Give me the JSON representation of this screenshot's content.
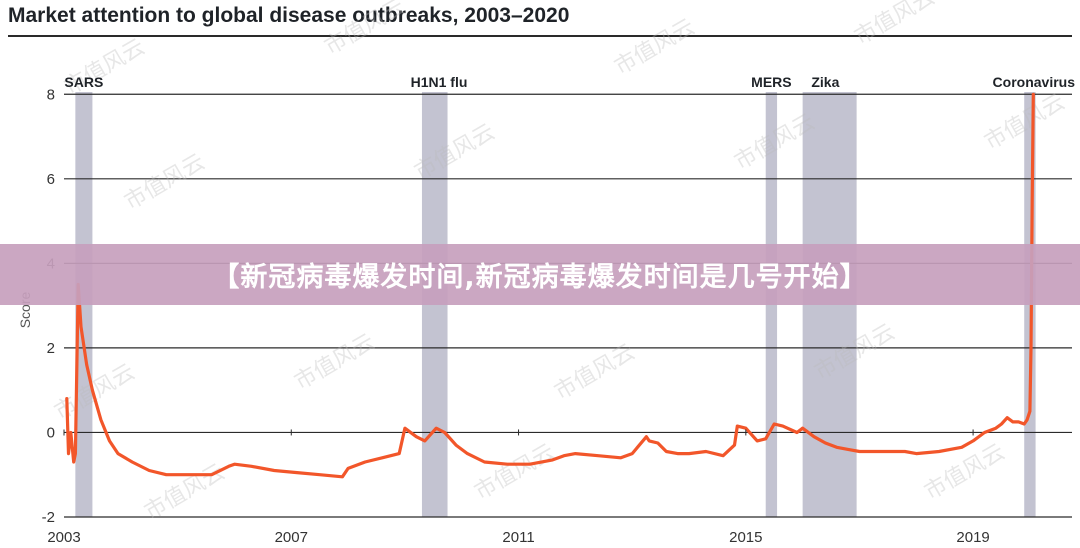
{
  "title": "Market attention to global disease outbreaks, 2003–2020",
  "banner_text": "【新冠病毒爆发时间,新冠病毒爆发时间是几号开始】",
  "watermark_text": "市值风云",
  "colors": {
    "line": "#f2562a",
    "band": "#b9b9c9",
    "grid": "#2b2b2b",
    "banner": "#c8a2bd"
  },
  "chart_data": {
    "type": "line",
    "title": "Market attention to global disease outbreaks, 2003–2020",
    "xlabel": "",
    "ylabel": "Score",
    "xlim": [
      2003.0,
      2020.6
    ],
    "ylim": [
      -2,
      9
    ],
    "x_ticks": [
      2003,
      2007,
      2011,
      2015,
      2019
    ],
    "y_ticks": [
      -2,
      0,
      2,
      4,
      6,
      8
    ],
    "grid": "horizontal",
    "bands": [
      {
        "label": "SARS",
        "start": 2003.2,
        "end": 2003.5,
        "label_x": 2003.35
      },
      {
        "label": "H1N1 flu",
        "start": 2009.3,
        "end": 2009.75,
        "label_x": 2009.6
      },
      {
        "label": "MERS",
        "start": 2015.35,
        "end": 2015.55,
        "label_x": 2015.45
      },
      {
        "label": "Zika",
        "start": 2016.0,
        "end": 2016.95,
        "label_x": 2016.4
      },
      {
        "label": "Coronavirus",
        "start": 2019.9,
        "end": 2020.1,
        "label_x": 2019.95
      }
    ],
    "series": [
      {
        "x": [
          2003.05,
          2003.08,
          2003.12,
          2003.17,
          2003.2,
          2003.25,
          2003.3,
          2003.4,
          2003.5,
          2003.65,
          2003.8,
          2003.95,
          2004.2,
          2004.5,
          2004.8,
          2005.2,
          2005.6,
          2005.9,
          2006.0,
          2006.3,
          2006.7,
          2007.1,
          2007.5,
          2007.9,
          2008.0,
          2008.3,
          2008.6,
          2008.9,
          2009.0,
          2009.2,
          2009.35,
          2009.55,
          2009.7,
          2009.9,
          2010.1,
          2010.4,
          2010.8,
          2011.2,
          2011.6,
          2011.8,
          2012.0,
          2012.4,
          2012.8,
          2013.0,
          2013.25,
          2013.3,
          2013.45,
          2013.6,
          2013.8,
          2014.0,
          2014.3,
          2014.6,
          2014.8,
          2014.85,
          2015.0,
          2015.2,
          2015.35,
          2015.5,
          2015.65,
          2015.9,
          2016.0,
          2016.2,
          2016.4,
          2016.6,
          2016.8,
          2017.0,
          2017.4,
          2017.8,
          2018.0,
          2018.4,
          2018.8,
          2019.0,
          2019.2,
          2019.4,
          2019.5,
          2019.6,
          2019.7,
          2019.8,
          2019.9,
          2019.95,
          2020.0,
          2020.02,
          2020.04,
          2020.06
        ],
        "y": [
          0.8,
          -0.5,
          0.0,
          -0.7,
          -0.5,
          3.5,
          2.5,
          1.6,
          1.0,
          0.3,
          -0.2,
          -0.5,
          -0.7,
          -0.9,
          -1.0,
          -1.0,
          -1.0,
          -0.8,
          -0.75,
          -0.8,
          -0.9,
          -0.95,
          -1.0,
          -1.05,
          -0.85,
          -0.7,
          -0.6,
          -0.5,
          0.1,
          -0.1,
          -0.2,
          0.1,
          0.0,
          -0.3,
          -0.5,
          -0.7,
          -0.75,
          -0.75,
          -0.65,
          -0.55,
          -0.5,
          -0.55,
          -0.6,
          -0.5,
          -0.1,
          -0.2,
          -0.25,
          -0.45,
          -0.5,
          -0.5,
          -0.45,
          -0.55,
          -0.3,
          0.15,
          0.1,
          -0.2,
          -0.15,
          0.2,
          0.15,
          0.0,
          0.1,
          -0.1,
          -0.25,
          -0.35,
          -0.4,
          -0.45,
          -0.45,
          -0.45,
          -0.5,
          -0.45,
          -0.35,
          -0.2,
          0.0,
          0.1,
          0.2,
          0.35,
          0.25,
          0.25,
          0.2,
          0.3,
          0.5,
          2.0,
          5.5,
          8.0
        ]
      }
    ]
  }
}
